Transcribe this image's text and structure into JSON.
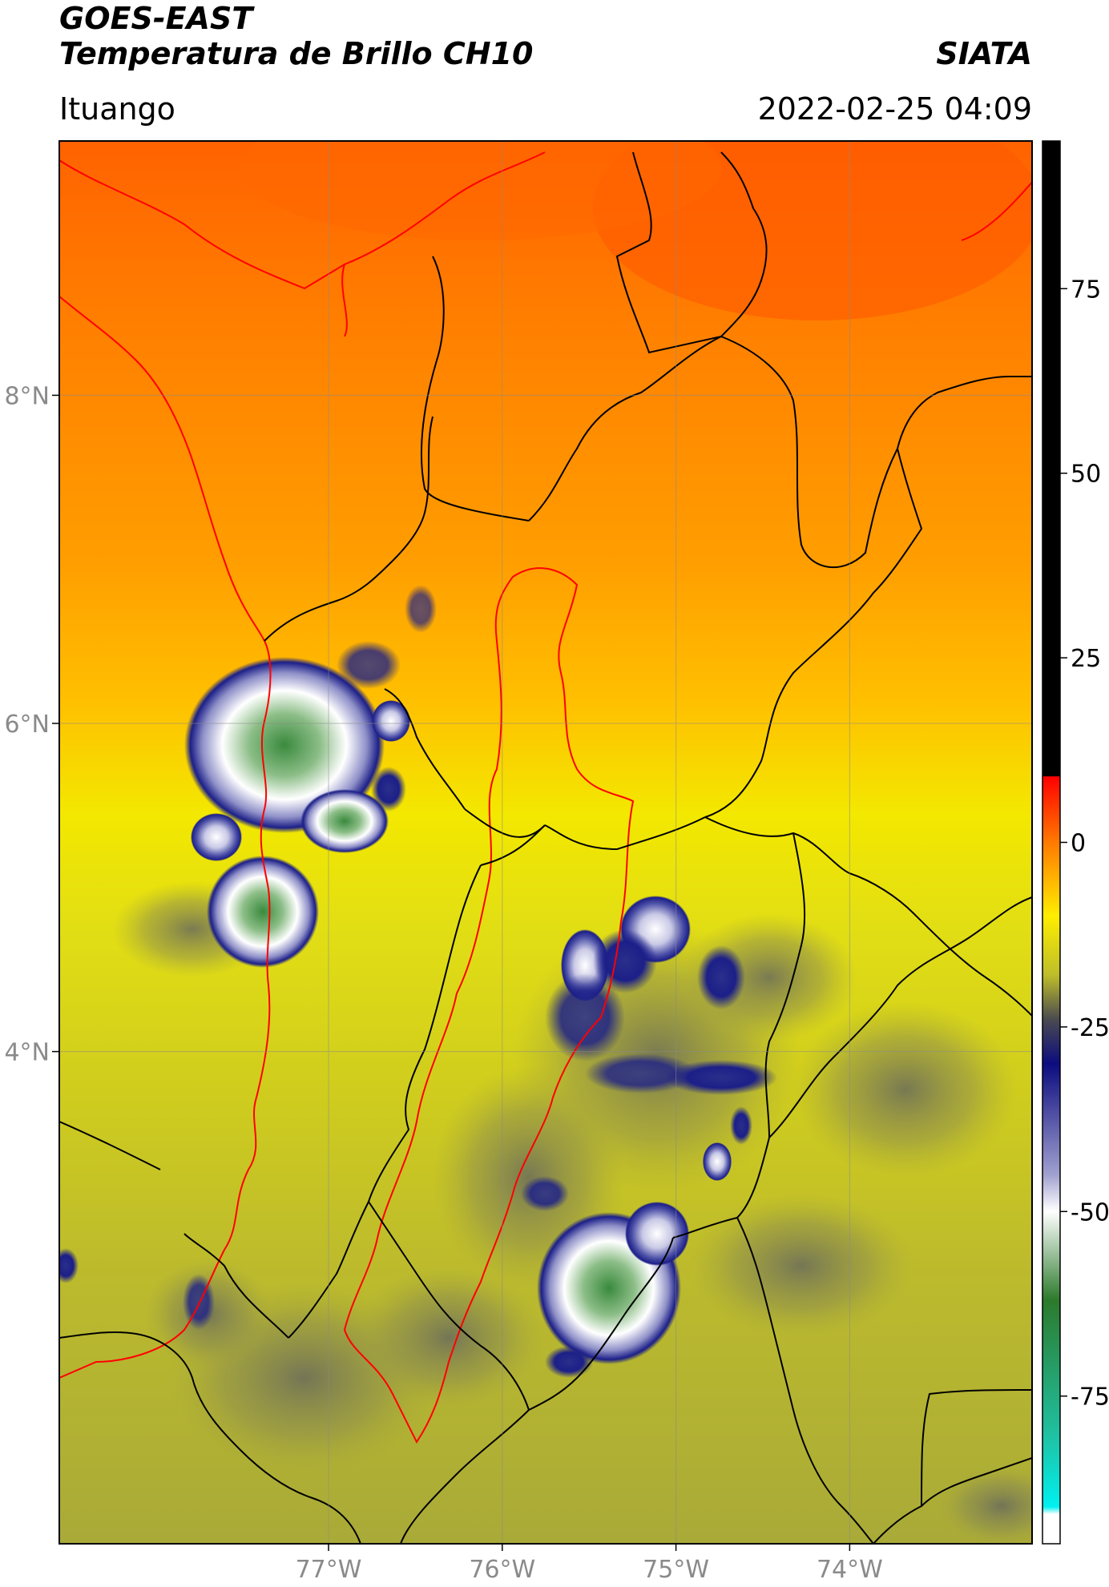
{
  "header": {
    "title_line1": "GOES-EAST",
    "title_line2": "Temperatura de Brillo CH10",
    "brand": "SIATA",
    "location": "Ituango",
    "datetime": "2022-02-25 04:09"
  },
  "map": {
    "lon_range": [
      -78.55,
      -72.95
    ],
    "lat_range": [
      1.0,
      9.55
    ],
    "lon_ticks": [
      {
        "value": -77,
        "label": "77°W"
      },
      {
        "value": -76,
        "label": "76°W"
      },
      {
        "value": -75,
        "label": "75°W"
      },
      {
        "value": -74,
        "label": "74°W"
      }
    ],
    "lat_ticks": [
      {
        "value": 8,
        "label": "8°N"
      },
      {
        "value": 6,
        "label": "6°N"
      },
      {
        "value": 4,
        "label": "4°N"
      }
    ],
    "gridlines": true,
    "colors": {
      "warm_top": "#ff6a00",
      "orange": "#ff9400",
      "yellow": "#f5f000",
      "olive": "#b8b92e",
      "gray": "#6e7060",
      "navy": "#1b1f8a",
      "white": "#ffffff",
      "green": "#3c8c3c",
      "coast_border": "#ff0000",
      "admin_border": "#000000"
    }
  },
  "colorbar": {
    "range": [
      -95,
      95
    ],
    "ticks": [
      75,
      50,
      25,
      0,
      -25,
      -50,
      -75
    ],
    "tick_labels": [
      "75",
      "50",
      "25",
      "0",
      "-25",
      "-50",
      "-75"
    ],
    "stops": [
      {
        "value": 95,
        "color": "#000000"
      },
      {
        "value": 9,
        "color": "#000000"
      },
      {
        "value": 8.9,
        "color": "#ff0000"
      },
      {
        "value": 0,
        "color": "#ff7a00"
      },
      {
        "value": -10,
        "color": "#ffee00"
      },
      {
        "value": -18,
        "color": "#bdbd2a"
      },
      {
        "value": -24,
        "color": "#4a4a50"
      },
      {
        "value": -30,
        "color": "#0c0c80"
      },
      {
        "value": -45,
        "color": "#a0a0d0"
      },
      {
        "value": -50,
        "color": "#ffffff"
      },
      {
        "value": -62,
        "color": "#2c7a2c"
      },
      {
        "value": -80,
        "color": "#20c0a0"
      },
      {
        "value": -90,
        "color": "#00f0f0"
      },
      {
        "value": -91,
        "color": "#ffffff"
      },
      {
        "value": -95,
        "color": "#ffffff"
      }
    ]
  }
}
